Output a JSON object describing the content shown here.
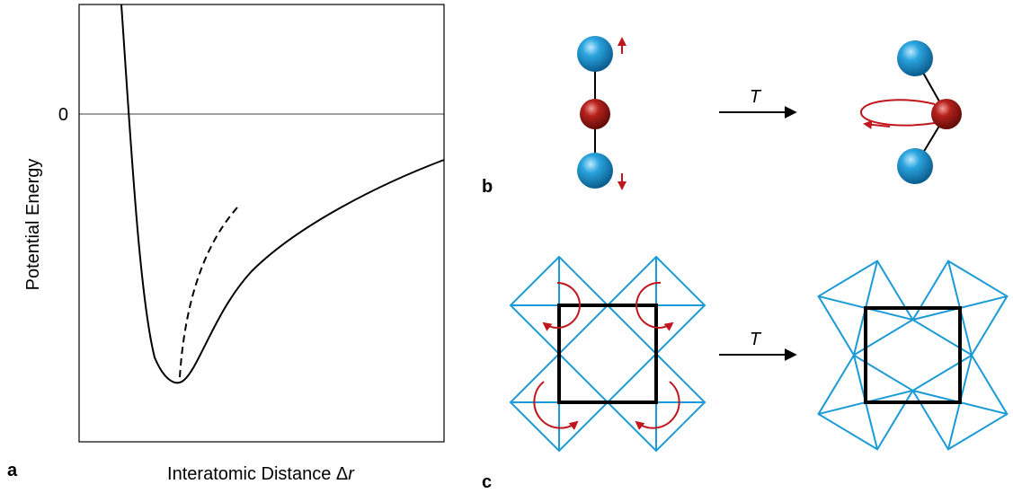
{
  "panels": [
    {
      "label": "a",
      "zero_label": "0",
      "y_axis_label": "Potential Energy",
      "x_axis_label": {
        "text": "Interatomic Distance Δ",
        "variable": "r"
      }
    },
    {
      "label": "b",
      "arrow_label": "T"
    },
    {
      "label": "c",
      "arrow_label": "T"
    }
  ]
}
